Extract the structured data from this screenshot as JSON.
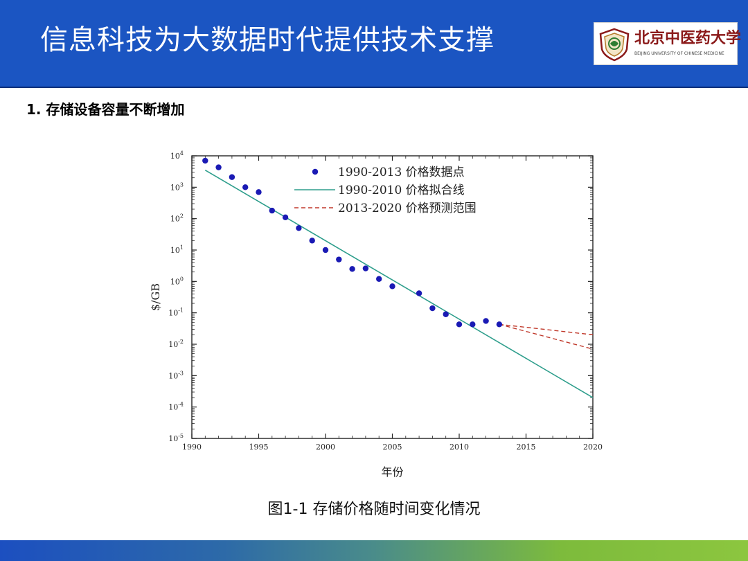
{
  "header": {
    "title": "信息科技为大数据时代提供技术支撑",
    "logo": {
      "name": "北京中医药大学",
      "subtitle": "BEIJING UNIVERSITY OF CHINESE MEDICINE",
      "icon": "university-emblem-icon"
    }
  },
  "section": {
    "heading": "1. 存储设备容量不断增加"
  },
  "caption": "图1-1 存储价格随时间变化情况",
  "colors": {
    "header_bg": "#1b55c2",
    "points": "#1a1ab4",
    "fit_line": "#2e9e8c",
    "forecast": "#c0392b"
  },
  "chart_data": {
    "type": "scatter",
    "xlabel": "年份",
    "ylabel": "$/GB",
    "xlim": [
      1990,
      2020
    ],
    "ylim_log10": [
      -5,
      4
    ],
    "yscale": "log",
    "xticks": [
      1990,
      1995,
      2000,
      2005,
      2010,
      2015,
      2020
    ],
    "yticks": [
      {
        "exp": 4,
        "base": "10",
        "sup": "4"
      },
      {
        "exp": 3,
        "base": "10",
        "sup": "3"
      },
      {
        "exp": 2,
        "base": "10",
        "sup": "2"
      },
      {
        "exp": 1,
        "base": "10",
        "sup": "1"
      },
      {
        "exp": 0,
        "base": "10",
        "sup": "0"
      },
      {
        "exp": -1,
        "base": "10",
        "sup": "-1"
      },
      {
        "exp": -2,
        "base": "10",
        "sup": "-2"
      },
      {
        "exp": -3,
        "base": "10",
        "sup": "-3"
      },
      {
        "exp": -4,
        "base": "10",
        "sup": "-4"
      },
      {
        "exp": -5,
        "base": "10",
        "sup": "-5"
      }
    ],
    "legend_position": "top-right",
    "series": [
      {
        "name": "1990-2013 价格数据点",
        "kind": "scatter",
        "points": [
          {
            "x": 1991,
            "y": 7000
          },
          {
            "x": 1992,
            "y": 4300
          },
          {
            "x": 1993,
            "y": 2100
          },
          {
            "x": 1994,
            "y": 1000
          },
          {
            "x": 1995,
            "y": 700
          },
          {
            "x": 1996,
            "y": 180
          },
          {
            "x": 1997,
            "y": 110
          },
          {
            "x": 1998,
            "y": 50
          },
          {
            "x": 1999,
            "y": 20
          },
          {
            "x": 2000,
            "y": 10
          },
          {
            "x": 2001,
            "y": 5
          },
          {
            "x": 2002,
            "y": 2.5
          },
          {
            "x": 2003,
            "y": 2.6
          },
          {
            "x": 2004,
            "y": 1.2
          },
          {
            "x": 2005,
            "y": 0.7
          },
          {
            "x": 2007,
            "y": 0.42
          },
          {
            "x": 2008,
            "y": 0.14
          },
          {
            "x": 2009,
            "y": 0.09
          },
          {
            "x": 2010,
            "y": 0.043
          },
          {
            "x": 2011,
            "y": 0.043
          },
          {
            "x": 2012,
            "y": 0.055
          },
          {
            "x": 2013,
            "y": 0.043
          }
        ]
      },
      {
        "name": "1990-2010 价格拟合线",
        "kind": "line",
        "points": [
          {
            "x": 1991,
            "y": 3500
          },
          {
            "x": 2020,
            "y": 0.0002
          }
        ]
      },
      {
        "name": "2013-2020 价格预测范围",
        "kind": "dashed",
        "lines": [
          [
            {
              "x": 2013,
              "y": 0.043
            },
            {
              "x": 2020,
              "y": 0.02
            }
          ],
          [
            {
              "x": 2013,
              "y": 0.043
            },
            {
              "x": 2020,
              "y": 0.007
            }
          ]
        ]
      }
    ]
  }
}
